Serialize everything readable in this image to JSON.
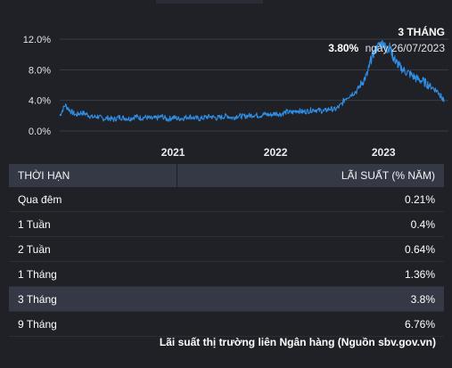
{
  "header": {
    "period": "3 THÁNG",
    "value": "3.80%",
    "date": "ngày 26/07/2023"
  },
  "chart_data": {
    "type": "line",
    "series": [
      {
        "points": [
          [
            2020.0,
            2.0
          ],
          [
            2020.05,
            3.4
          ],
          [
            2020.1,
            2.6
          ],
          [
            2020.15,
            2.1
          ],
          [
            2020.2,
            2.4
          ],
          [
            2020.25,
            2.2
          ],
          [
            2020.3,
            1.8
          ],
          [
            2020.35,
            1.9
          ],
          [
            2020.4,
            1.6
          ],
          [
            2020.45,
            1.7
          ],
          [
            2020.5,
            1.5
          ],
          [
            2020.55,
            1.8
          ],
          [
            2020.6,
            1.7
          ],
          [
            2020.65,
            1.6
          ],
          [
            2020.7,
            1.9
          ],
          [
            2020.75,
            1.7
          ],
          [
            2020.8,
            1.8
          ],
          [
            2020.85,
            1.6
          ],
          [
            2020.9,
            1.7
          ],
          [
            2020.95,
            1.9
          ],
          [
            2021.0,
            1.5
          ],
          [
            2021.05,
            1.8
          ],
          [
            2021.1,
            1.6
          ],
          [
            2021.15,
            1.7
          ],
          [
            2021.2,
            1.9
          ],
          [
            2021.25,
            1.7
          ],
          [
            2021.3,
            1.6
          ],
          [
            2021.35,
            1.8
          ],
          [
            2021.4,
            1.9
          ],
          [
            2021.45,
            1.7
          ],
          [
            2021.5,
            1.8
          ],
          [
            2021.55,
            2.0
          ],
          [
            2021.6,
            1.7
          ],
          [
            2021.65,
            2.0
          ],
          [
            2021.7,
            1.9
          ],
          [
            2021.75,
            2.0
          ],
          [
            2021.8,
            2.1
          ],
          [
            2021.85,
            2.0
          ],
          [
            2021.9,
            2.2
          ],
          [
            2021.95,
            2.1
          ],
          [
            2022.0,
            2.3
          ],
          [
            2022.05,
            2.2
          ],
          [
            2022.1,
            2.5
          ],
          [
            2022.15,
            2.4
          ],
          [
            2022.2,
            2.7
          ],
          [
            2022.25,
            2.5
          ],
          [
            2022.3,
            2.6
          ],
          [
            2022.35,
            2.8
          ],
          [
            2022.4,
            2.7
          ],
          [
            2022.45,
            2.6
          ],
          [
            2022.5,
            2.9
          ],
          [
            2022.55,
            2.8
          ],
          [
            2022.6,
            3.3
          ],
          [
            2022.65,
            4.3
          ],
          [
            2022.7,
            4.8
          ],
          [
            2022.75,
            5.2
          ],
          [
            2022.8,
            6.3
          ],
          [
            2022.85,
            7.4
          ],
          [
            2022.88,
            9.2
          ],
          [
            2022.92,
            10.5
          ],
          [
            2022.96,
            11.3
          ],
          [
            2023.0,
            11.5
          ],
          [
            2023.03,
            10.6
          ],
          [
            2023.06,
            11.0
          ],
          [
            2023.09,
            9.6
          ],
          [
            2023.12,
            9.0
          ],
          [
            2023.15,
            8.4
          ],
          [
            2023.2,
            7.8
          ],
          [
            2023.25,
            7.4
          ],
          [
            2023.3,
            6.9
          ],
          [
            2023.35,
            6.6
          ],
          [
            2023.4,
            6.2
          ],
          [
            2023.45,
            5.7
          ],
          [
            2023.5,
            5.2
          ],
          [
            2023.53,
            4.6
          ],
          [
            2023.56,
            3.8
          ]
        ]
      }
    ],
    "x_ticks": [
      "2021",
      "2022",
      "2023"
    ],
    "x_tick_values": [
      2021.05,
      2022.0,
      2023.0
    ],
    "xlim": [
      2020.0,
      2023.56
    ],
    "y_ticks": [
      "0.0%",
      "4.0%",
      "8.0%",
      "12.0%"
    ],
    "y_tick_values": [
      0,
      4,
      8,
      12
    ],
    "ylim": [
      0,
      12
    ],
    "color": "#2f8fe6",
    "grid": true
  },
  "table": {
    "headers": {
      "term": "THỜI HẠN",
      "rate": "LÃI SUẤT (% NĂM)"
    },
    "rows": [
      {
        "term": "Qua đêm",
        "rate": "0.21%"
      },
      {
        "term": "1 Tuần",
        "rate": "0.4%"
      },
      {
        "term": "2 Tuần",
        "rate": "0.64%"
      },
      {
        "term": "1 Tháng",
        "rate": "1.36%"
      },
      {
        "term": "3 Tháng",
        "rate": "3.8%"
      },
      {
        "term": "9 Tháng",
        "rate": "6.76%"
      }
    ],
    "highlight_index": 4
  },
  "footer": {
    "source": "Lãi suất thị trường liên Ngân hàng (Nguồn sbv.gov.vn)"
  }
}
